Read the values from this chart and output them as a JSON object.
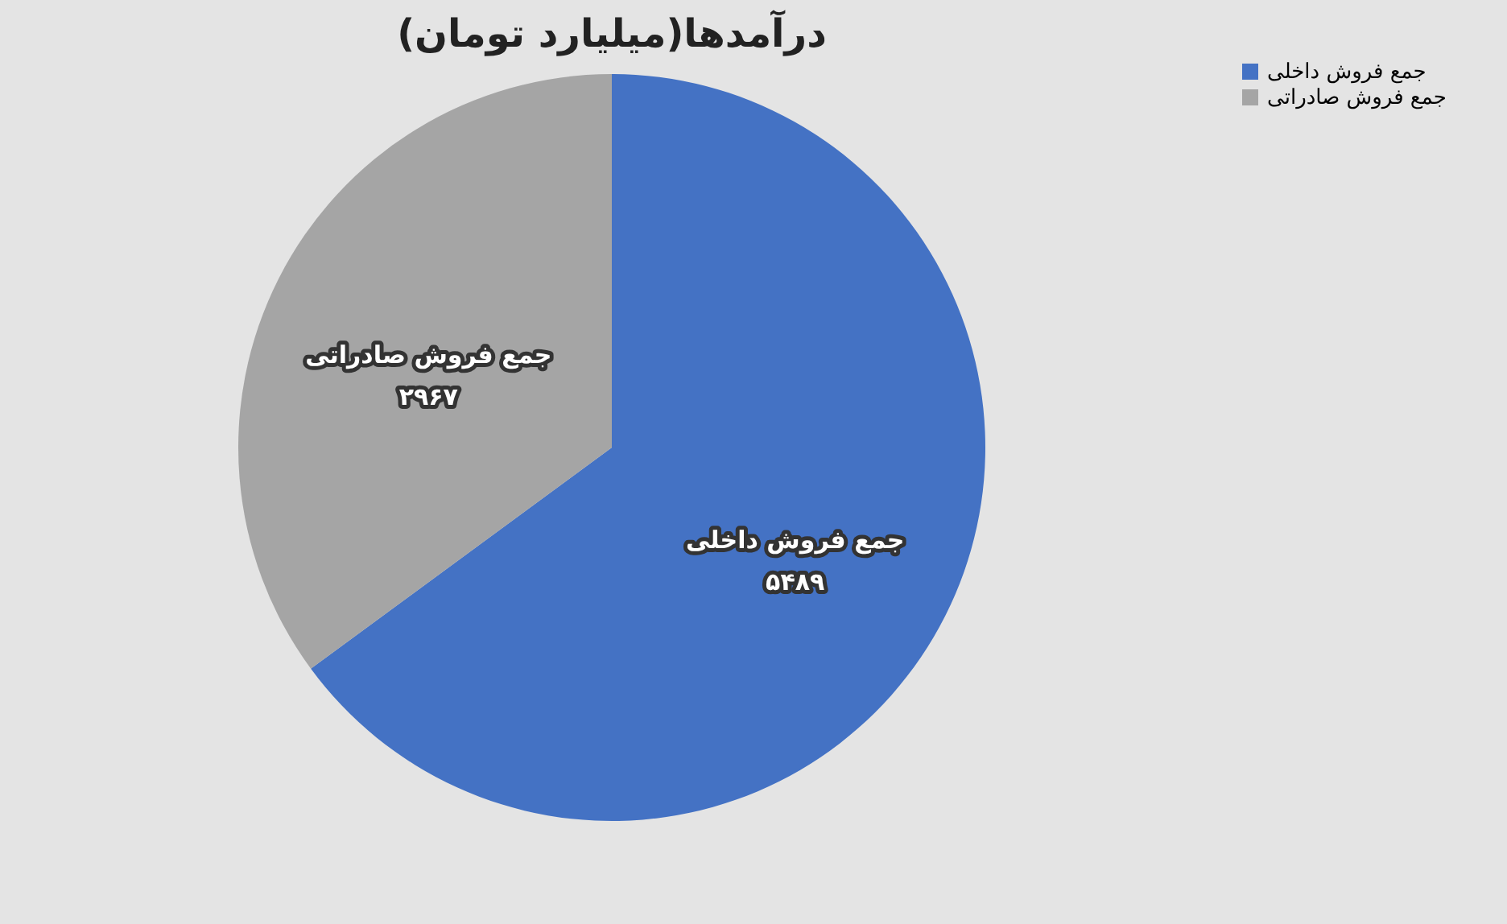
{
  "chart_data": {
    "type": "pie",
    "title": "درآمدها(میلیارد تومان)",
    "categories": [
      "جمع فروش داخلی",
      "جمع فروش صادراتی"
    ],
    "values": [
      5489,
      2967
    ],
    "colors": [
      "#4472c4",
      "#a5a5a5"
    ],
    "value_labels": [
      "۵۴۸۹",
      "۲۹۶۷"
    ],
    "legend": "right"
  }
}
